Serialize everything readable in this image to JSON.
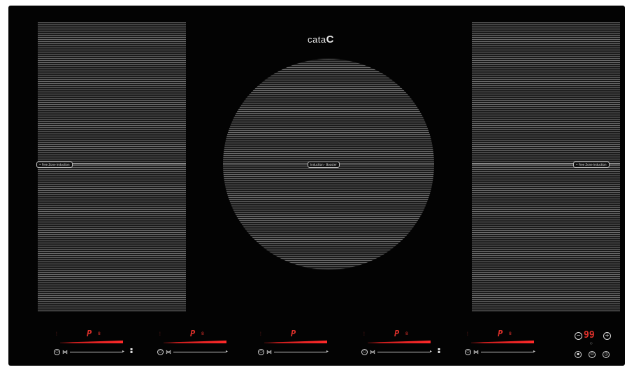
{
  "brand": {
    "text": "cata",
    "mark": "C"
  },
  "zones": {
    "left_label": "• Free Zone Induction",
    "center_label": "Induction · Booster",
    "right_label": "• Free Zone Induction"
  },
  "controls": [
    {
      "power": "P",
      "suffix": "8",
      "dots": "⋮",
      "has_selector": true
    },
    {
      "power": "P",
      "suffix": "8",
      "dots": "⋮",
      "has_selector": false
    },
    {
      "power": "P",
      "suffix": "",
      "dots": "⋮",
      "has_selector": false
    },
    {
      "power": "P",
      "suffix": "8",
      "dots": "⋮",
      "has_selector": true
    },
    {
      "power": "P",
      "suffix": "8",
      "dots": "⋮",
      "has_selector": false
    }
  ],
  "timer": {
    "minus": "−",
    "digits": "99",
    "plus": "+",
    "label": "○"
  },
  "icons": {
    "power_ring": "power-ring-icon",
    "cross": "bridge-icon",
    "arrow": "arrow-icon",
    "selector": "zone-select-icon"
  },
  "colors": {
    "glass": "#030303",
    "display_red": "#e0312b",
    "lines": "#6a6a6a"
  }
}
